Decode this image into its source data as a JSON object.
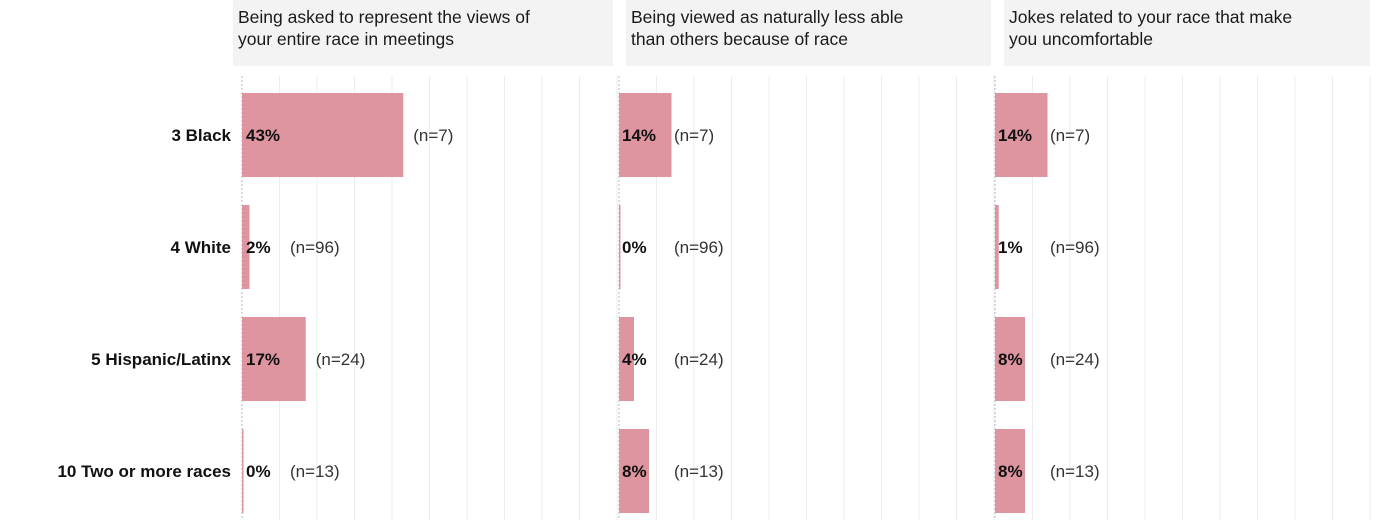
{
  "chart_data": {
    "type": "bar",
    "orientation": "horizontal",
    "facets": 3,
    "bar_color": "#dc8f9b",
    "grid": true,
    "xlim": [
      0,
      1
    ],
    "categories": [
      "3 Black",
      "4 White",
      "5 Hispanic/Latinx",
      "10 Two or more races"
    ],
    "panels": [
      {
        "title_lines": [
          "Being asked to represent the views of",
          "your entire race in meetings"
        ],
        "values": [
          0.43,
          0.02,
          0.17,
          0.0
        ],
        "value_labels": [
          "43%",
          "2%",
          "17%",
          "0%"
        ],
        "n_labels": [
          "(n=7)",
          "(n=96)",
          "(n=24)",
          "(n=13)"
        ]
      },
      {
        "title_lines": [
          "Being viewed as naturally less able",
          "than others because of race"
        ],
        "values": [
          0.14,
          0.0,
          0.04,
          0.08
        ],
        "value_labels": [
          "14%",
          "0%",
          "4%",
          "8%"
        ],
        "n_labels": [
          "(n=7)",
          "(n=96)",
          "(n=24)",
          "(n=13)"
        ]
      },
      {
        "title_lines": [
          "Jokes related to your race that make",
          "you uncomfortable"
        ],
        "values": [
          0.14,
          0.01,
          0.08,
          0.08
        ],
        "value_labels": [
          "14%",
          "1%",
          "8%",
          "8%"
        ],
        "n_labels": [
          "(n=7)",
          "(n=96)",
          "(n=24)",
          "(n=13)"
        ]
      }
    ]
  }
}
